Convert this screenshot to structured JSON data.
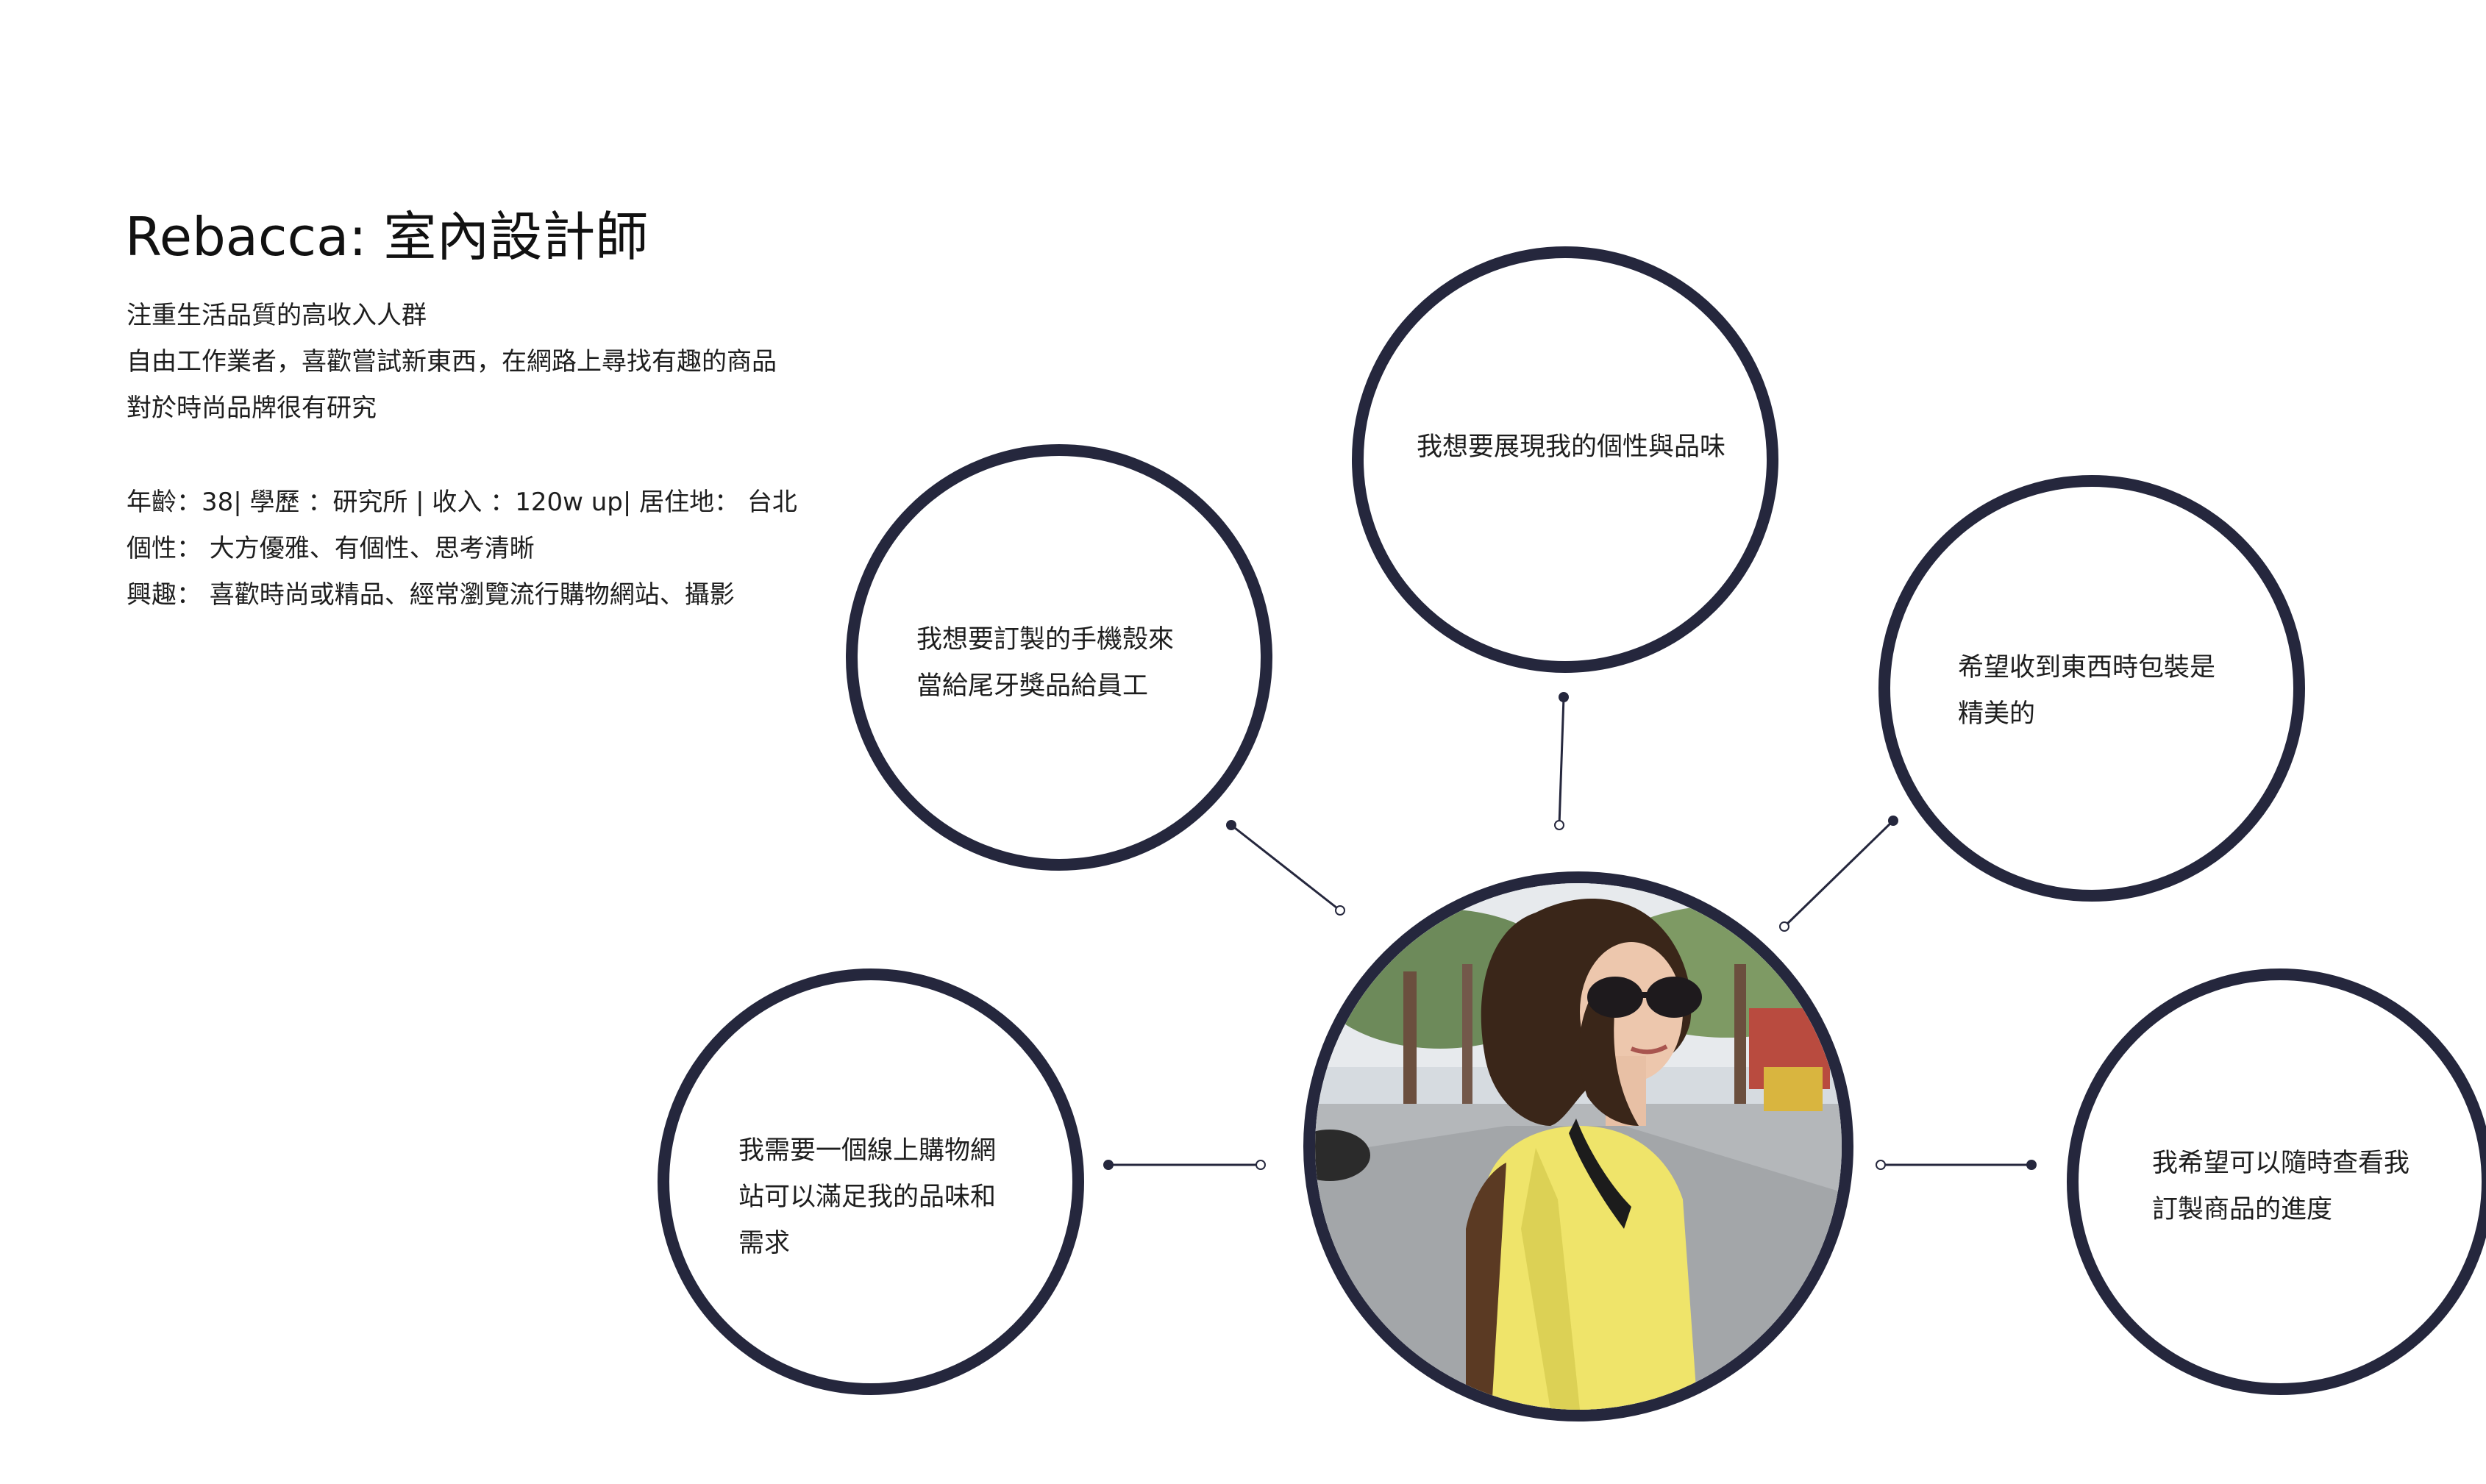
{
  "persona": {
    "title": "Rebacca: 室內設計師",
    "description": [
      "注重生活品質的高收入人群",
      "自由工作業者，喜歡嘗試新東西，在網路上尋找有趣的商品",
      "對於時尚品牌很有研究"
    ],
    "stats": [
      "年齡：38| 學歷 ：研究所 | 收入 ：120w up| 居住地： 台北",
      "個性： 大方優雅、有個性、思考清晰",
      "興趣： 喜歡時尚或精品、經常瀏覽流行購物網站、攝影"
    ]
  },
  "needs": {
    "top": "我想要展現我的個性與品味",
    "upper_left": "我想要訂製的手機殼來\n當給尾牙獎品給員工",
    "upper_right": "希望收到東西時包裝是\n精美的",
    "lower_left": "我需要一個線上購物網\n站可以滿足我的品味和\n需求",
    "lower_right": "我希望可以隨時查看我\n訂製商品的進度"
  },
  "colors": {
    "circle_border": "#25273d",
    "connector": "#25273d",
    "text": "#1e1e1e"
  }
}
